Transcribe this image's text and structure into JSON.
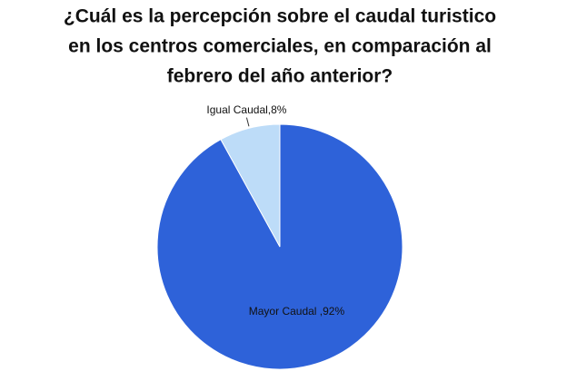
{
  "chart_data": {
    "type": "pie",
    "title": [
      "¿Cuál es la percepción sobre el caudal turistico",
      "en los centros comerciales,  en comparación al",
      "febrero del año anterior?"
    ],
    "values": [
      92,
      8
    ],
    "value_labels": [
      "Mayor Caudal ,92%",
      "Igual Caudal,8%"
    ],
    "colors": [
      "#2e62d9",
      "#bddcf8"
    ]
  }
}
